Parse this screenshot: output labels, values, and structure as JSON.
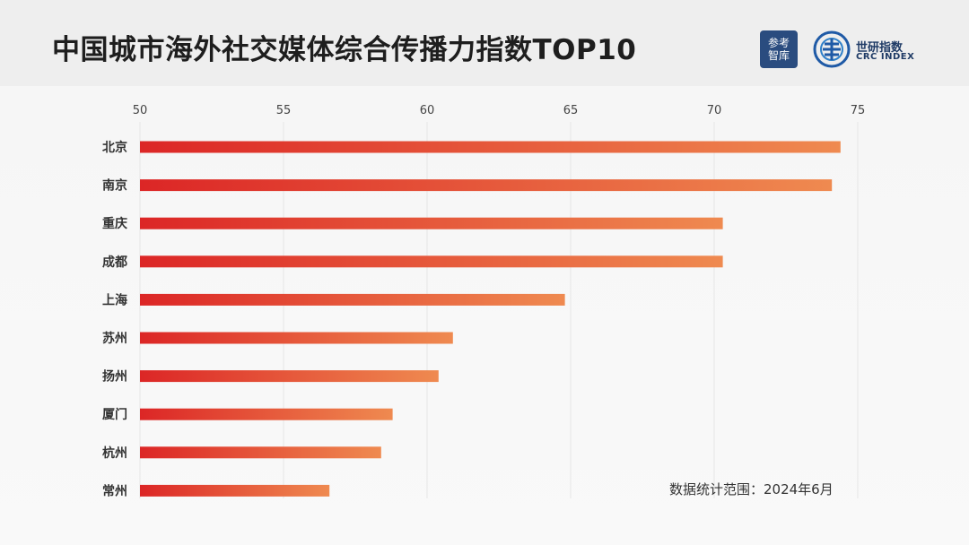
{
  "header": {
    "title": "中国城市海外社交媒体综合传播力指数TOP10",
    "logo_left_text": [
      "参考",
      "智库"
    ],
    "logo_right_cn": "世研指数",
    "logo_right_en": "CRC INDEX"
  },
  "colors": {
    "bar_start": "#dc2626",
    "bar_end": "#ef8a50",
    "logo_blue": "#2a4c7f"
  },
  "chart_data": {
    "type": "bar",
    "orientation": "horizontal",
    "title": "中国城市海外社交媒体综合传播力指数TOP10",
    "xlabel": "",
    "ylabel": "",
    "xlim": [
      50,
      75
    ],
    "xticks": [
      50,
      55,
      60,
      65,
      70,
      75
    ],
    "axis_position": "top",
    "grid": true,
    "categories": [
      "北京",
      "南京",
      "重庆",
      "成都",
      "上海",
      "苏州",
      "扬州",
      "厦门",
      "杭州",
      "常州"
    ],
    "values": [
      74.4,
      74.1,
      70.3,
      70.3,
      64.8,
      60.9,
      60.4,
      58.8,
      58.4,
      56.6
    ]
  },
  "note": "数据统计范围：2024年6月"
}
